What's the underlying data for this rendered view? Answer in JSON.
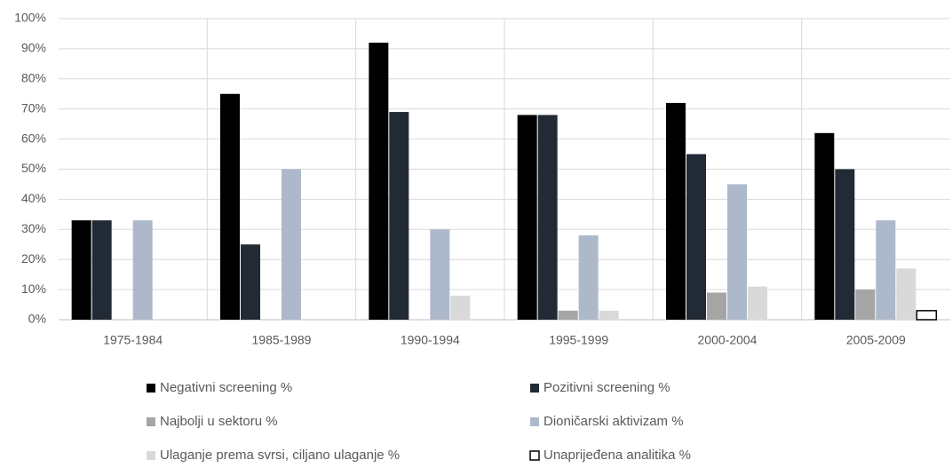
{
  "chart_data": {
    "type": "bar",
    "categories": [
      "1975-1984",
      "1985-1989",
      "1990-1994",
      "1995-1999",
      "2000-2004",
      "2005-2009"
    ],
    "series": [
      {
        "name": "Negativni screening %",
        "color": "#000000",
        "values": [
          33,
          75,
          92,
          68,
          72,
          62
        ]
      },
      {
        "name": "Pozitivni screening %",
        "color": "#222a35",
        "values": [
          33,
          25,
          69,
          68,
          55,
          50
        ]
      },
      {
        "name": "Najbolji u sektoru %",
        "color": "#a5a5a5",
        "values": [
          0,
          0,
          0,
          3,
          9,
          10
        ]
      },
      {
        "name": "Dioničarski aktivizam %",
        "color": "#adb9ca",
        "values": [
          33,
          50,
          30,
          28,
          45,
          33
        ]
      },
      {
        "name": "Ulaganje prema svrsi, ciljano ulaganje %",
        "color": "#d9d9d9",
        "values": [
          0,
          0,
          8,
          3,
          11,
          17
        ]
      },
      {
        "name": "Unaprijeđena analitika %",
        "color": "#ffffff",
        "edgecolor": "#000000",
        "values": [
          0,
          0,
          0,
          0,
          0,
          3
        ]
      }
    ],
    "ylim": [
      0,
      100
    ],
    "yticks": [
      {
        "value": 0,
        "label": "0%"
      },
      {
        "value": 10,
        "label": "10%"
      },
      {
        "value": 20,
        "label": "20%"
      },
      {
        "value": 30,
        "label": "30%"
      },
      {
        "value": 40,
        "label": "40%"
      },
      {
        "value": 50,
        "label": "50%"
      },
      {
        "value": 60,
        "label": "60%"
      },
      {
        "value": 70,
        "label": "70%"
      },
      {
        "value": 80,
        "label": "80%"
      },
      {
        "value": 90,
        "label": "90%"
      },
      {
        "value": 100,
        "label": "100%"
      }
    ],
    "grid": true,
    "legend": "bottom"
  }
}
